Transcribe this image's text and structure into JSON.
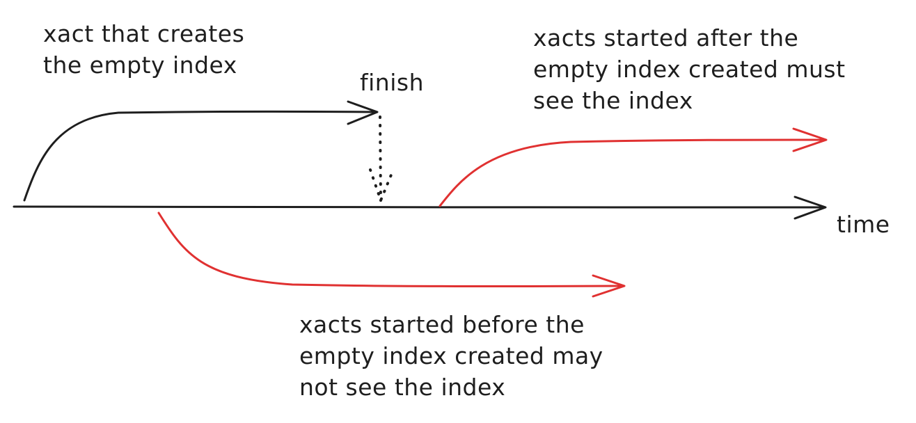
{
  "labels": {
    "creator_xact": [
      "xact that creates",
      "the empty index"
    ],
    "finish": "finish",
    "after_xacts": [
      "xacts started after the",
      "empty index created must",
      "see the index"
    ],
    "before_xacts": [
      "xacts started before the",
      "empty index created may",
      "not see the index"
    ],
    "time": "time"
  },
  "colors": {
    "ink": "#1e1e1e",
    "highlight": "#e03131"
  }
}
